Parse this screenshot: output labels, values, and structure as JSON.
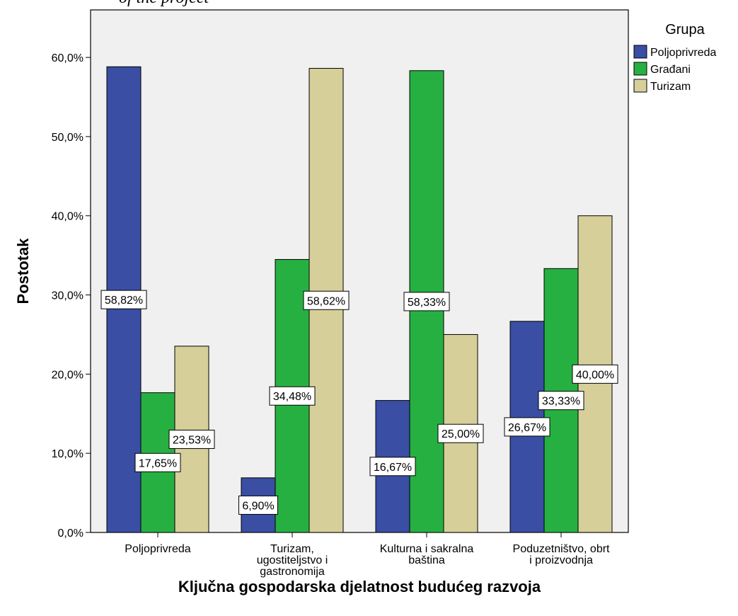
{
  "header_fragment": "of the project",
  "chart_data": {
    "type": "bar",
    "title": "",
    "xlabel": "Ključna gospodarska djelatnost budućeg razvoja",
    "ylabel": "Postotak",
    "ylim": [
      0,
      66
    ],
    "yticks": [
      0,
      10,
      20,
      30,
      40,
      50,
      60
    ],
    "ytick_labels": [
      "0,0%",
      "10,0%",
      "20,0%",
      "30,0%",
      "40,0%",
      "50,0%",
      "60,0%"
    ],
    "categories": [
      [
        "Poljoprivreda"
      ],
      [
        "Turizam,",
        "ugostiteljstvo i",
        "gastronomija"
      ],
      [
        "Kulturna i sakralna",
        "baština"
      ],
      [
        "Poduzetništvo, obrt",
        "i proizvodnja"
      ]
    ],
    "grid": false,
    "legend_title": "Grupa",
    "legend_position": "top-right",
    "series": [
      {
        "name": "Poljoprivreda",
        "color": "#3a4ea3",
        "values": [
          58.82,
          6.9,
          16.67,
          26.67
        ],
        "labels": [
          "58,82%",
          "6,90%",
          "16,67%",
          "26,67%"
        ]
      },
      {
        "name": "Građani",
        "color": "#27b042",
        "values": [
          17.65,
          34.48,
          58.33,
          33.33
        ],
        "labels": [
          "17,65%",
          "34,48%",
          "58,33%",
          "33,33%"
        ]
      },
      {
        "name": "Turizam",
        "color": "#d6cf9a",
        "values": [
          23.53,
          58.62,
          25.0,
          40.0
        ],
        "labels": [
          "23,53%",
          "58,62%",
          "25,00%",
          "40,00%"
        ]
      }
    ]
  }
}
